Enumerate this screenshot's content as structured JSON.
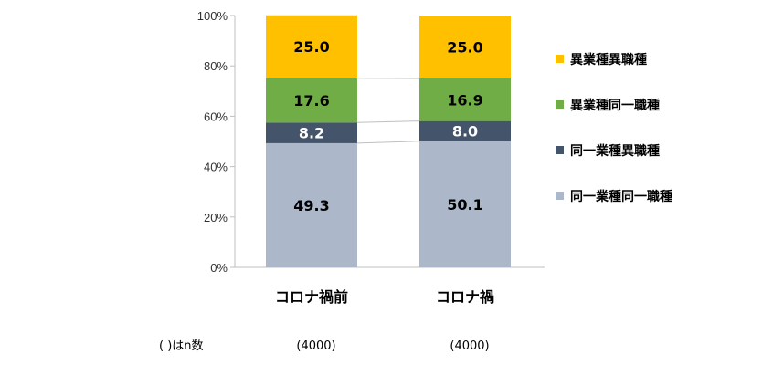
{
  "chart_data": {
    "type": "stacked-bar-100",
    "categories": [
      "コロナ禍前",
      "コロナ禍"
    ],
    "sample_sizes": [
      "(4000)",
      "(4000)"
    ],
    "sample_note": "(  )はn数",
    "series": [
      {
        "name": "同一業種同一職種",
        "color": "#ACB8CA",
        "label_color": "#000000",
        "values": [
          49.3,
          50.1
        ]
      },
      {
        "name": "同一業種異職種",
        "color": "#44546A",
        "label_color": "#FFFFFF",
        "values": [
          8.2,
          8.0
        ]
      },
      {
        "name": "異業種同一職種",
        "color": "#70AD47",
        "label_color": "#000000",
        "values": [
          17.6,
          16.9
        ]
      },
      {
        "name": "異業種異職種",
        "color": "#FFC000",
        "label_color": "#000000",
        "values": [
          25.0,
          25.0
        ]
      }
    ],
    "y_ticks": [
      "0%",
      "20%",
      "40%",
      "60%",
      "80%",
      "100%"
    ],
    "ylim": [
      0,
      100
    ],
    "legend_order": [
      "異業種異職種",
      "異業種同一職種",
      "同一業種異職種",
      "同一業種同一職種"
    ],
    "legend_position": "right",
    "grid": false
  }
}
